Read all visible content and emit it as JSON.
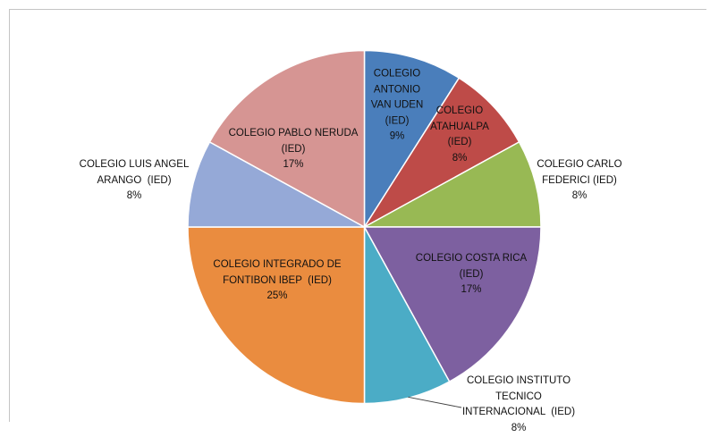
{
  "chart_data": {
    "type": "pie",
    "categories": [
      "COLEGIO ANTONIO VAN UDEN (IED)",
      "COLEGIO ATAHUALPA (IED)",
      "COLEGIO CARLO FEDERICI (IED)",
      "COLEGIO COSTA RICA (IED)",
      "COLEGIO INSTITUTO TECNICO INTERNACIONAL  (IED)",
      "COLEGIO INTEGRADO DE FONTIBON IBEP  (IED)",
      "COLEGIO LUIS ANGEL ARANGO  (IED)",
      "COLEGIO PABLO NERUDA (IED)"
    ],
    "values": [
      9,
      8,
      8,
      17,
      8,
      25,
      8,
      17
    ],
    "data_labels": [
      "9%",
      "8%",
      "8%",
      "17%",
      "8%",
      "25%",
      "8%",
      "17%"
    ],
    "colors": [
      "#4A7EBB",
      "#BE4B48",
      "#98B954",
      "#7D60A0",
      "#4BACC6",
      "#EA8C3F",
      "#95A9D7",
      "#D69593"
    ]
  }
}
